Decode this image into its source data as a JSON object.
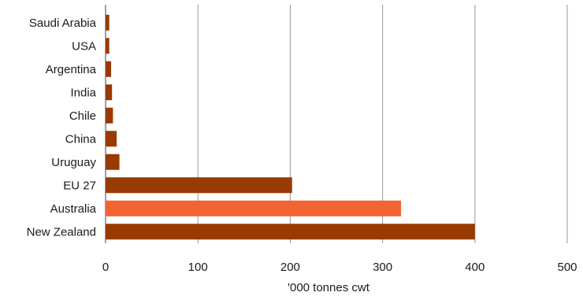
{
  "chart_data": {
    "type": "bar",
    "orientation": "horizontal",
    "categories": [
      "Saudi Arabia",
      "USA",
      "Argentina",
      "India",
      "Chile",
      "China",
      "Uruguay",
      "EU 27",
      "Australia",
      "New Zealand"
    ],
    "values": [
      4,
      4,
      6,
      7,
      8,
      12,
      15,
      202,
      320,
      400
    ],
    "bar_colors": [
      "#993a00",
      "#993a00",
      "#993a00",
      "#993a00",
      "#993a00",
      "#993a00",
      "#993a00",
      "#993a00",
      "#f26532",
      "#993a00"
    ],
    "xlabel": "'000 tonnes cwt",
    "xlim": [
      0,
      500
    ],
    "xticks": [
      0,
      100,
      200,
      300,
      400,
      500
    ],
    "grid": "vertical",
    "gridline_color": "#999999"
  }
}
